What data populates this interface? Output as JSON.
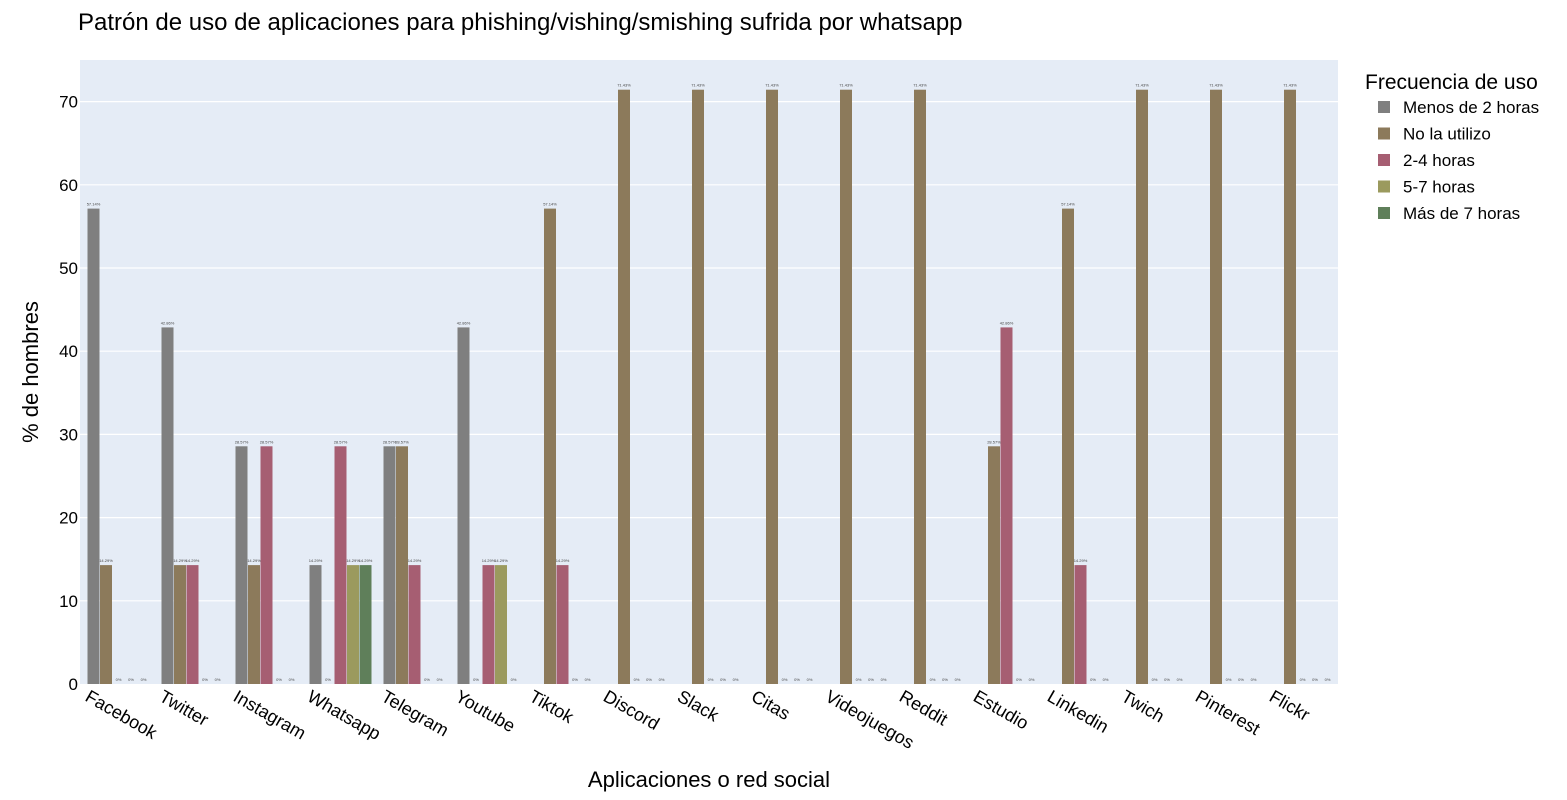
{
  "chart_data": {
    "type": "bar",
    "title": "Patrón de uso de aplicaciones para phishing/vishing/smishing sufrida por whatsapp",
    "xlabel": "Aplicaciones o red social",
    "ylabel": "% de hombres",
    "ylim": [
      0,
      75
    ],
    "yticks": [
      0,
      10,
      20,
      30,
      40,
      50,
      60,
      70
    ],
    "grid": true,
    "legend_title": "Frecuencia de uso",
    "legend_position": "right",
    "categories": [
      "Facebook",
      "Twitter",
      "Instagram",
      "Whatsapp",
      "Telegram",
      "Youtube",
      "Tiktok",
      "Discord",
      "Slack",
      "Citas",
      "Videojuegos",
      "Reddit",
      "Estudio",
      "Linkedin",
      "Twich",
      "Pinterest",
      "Flickr"
    ],
    "series": [
      {
        "name": "Menos de 2 horas",
        "color": "#7f7f7f",
        "values": [
          57.14,
          42.86,
          28.57,
          14.29,
          28.57,
          42.86,
          null,
          null,
          null,
          null,
          null,
          null,
          null,
          null,
          null,
          null,
          null
        ],
        "labels": [
          "57.14%",
          "42.86%",
          "28.57%",
          "14.29%",
          "28.57%",
          "42.86%",
          "",
          "",
          "",
          "",
          "",
          "",
          "",
          "",
          "",
          "",
          ""
        ]
      },
      {
        "name": "No la utilizo",
        "color": "#8c7a5b",
        "values": [
          14.29,
          14.29,
          14.29,
          0,
          28.57,
          0,
          57.14,
          71.43,
          71.43,
          71.43,
          71.43,
          71.43,
          28.57,
          57.14,
          71.43,
          71.43,
          71.43
        ],
        "labels": [
          "14.29%",
          "14.29%",
          "14.29%",
          "0%",
          "28.57%",
          "0%",
          "57.14%",
          "71.43%",
          "71.43%",
          "71.43%",
          "71.43%",
          "71.43%",
          "28.57%",
          "57.14%",
          "71.43%",
          "71.43%",
          "71.43%"
        ]
      },
      {
        "name": "2-4 horas",
        "color": "#a65e72",
        "values": [
          0,
          14.29,
          28.57,
          28.57,
          14.29,
          14.29,
          14.29,
          0,
          0,
          0,
          0,
          0,
          42.86,
          14.29,
          0,
          0,
          0
        ],
        "labels": [
          "0%",
          "14.29%",
          "28.57%",
          "28.57%",
          "14.29%",
          "14.29%",
          "14.29%",
          "0%",
          "0%",
          "0%",
          "0%",
          "0%",
          "42.86%",
          "14.29%",
          "0%",
          "0%",
          "0%"
        ]
      },
      {
        "name": "5-7 horas",
        "color": "#9b9a5e",
        "values": [
          0,
          0,
          0,
          14.29,
          0,
          14.29,
          0,
          0,
          0,
          0,
          0,
          0,
          0,
          0,
          0,
          0,
          0
        ],
        "labels": [
          "0%",
          "0%",
          "0%",
          "14.29%",
          "0%",
          "14.29%",
          "0%",
          "0%",
          "0%",
          "0%",
          "0%",
          "0%",
          "0%",
          "0%",
          "0%",
          "0%",
          "0%"
        ]
      },
      {
        "name": "Más de 7 horas",
        "color": "#5f7f5a",
        "values": [
          0,
          0,
          0,
          14.29,
          0,
          0,
          0,
          0,
          0,
          0,
          0,
          0,
          0,
          0,
          0,
          0,
          0
        ],
        "labels": [
          "0%",
          "0%",
          "0%",
          "14.29%",
          "0%",
          "0%",
          "0%",
          "0%",
          "0%",
          "0%",
          "0%",
          "0%",
          "0%",
          "0%",
          "0%",
          "0%",
          "0%"
        ]
      }
    ]
  }
}
